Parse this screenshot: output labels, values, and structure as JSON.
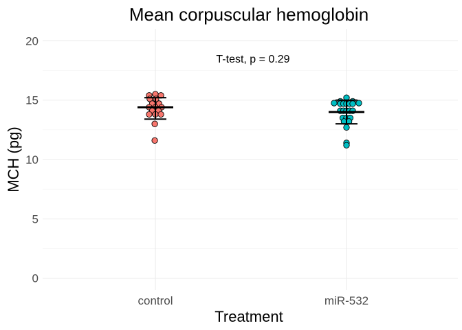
{
  "chart_data": {
    "type": "scatter",
    "title": "Mean corpuscular hemoglobin",
    "annotation": "T-test, p = 0.29",
    "xlabel": "Treatment",
    "ylabel": "MCH (pg)",
    "categories": [
      "control",
      "miR-532"
    ],
    "ylim": [
      -1,
      21
    ],
    "yticks": [
      0,
      5,
      10,
      15,
      20
    ],
    "grid": true,
    "series": [
      {
        "category": "control",
        "color": "#F8766D",
        "mean": 14.4,
        "sd_low": 13.4,
        "sd_high": 15.2,
        "points": [
          {
            "jitter": -0.5,
            "y": 15.4
          },
          {
            "jitter": 0.0,
            "y": 15.5
          },
          {
            "jitter": 0.45,
            "y": 15.4
          },
          {
            "jitter": -0.45,
            "y": 15.1
          },
          {
            "jitter": 0.05,
            "y": 15.1
          },
          {
            "jitter": -0.25,
            "y": 14.7
          },
          {
            "jitter": 0.3,
            "y": 14.7
          },
          {
            "jitter": -0.5,
            "y": 14.4
          },
          {
            "jitter": 0.0,
            "y": 14.4
          },
          {
            "jitter": 0.5,
            "y": 14.4
          },
          {
            "jitter": -0.25,
            "y": 14.1
          },
          {
            "jitter": 0.25,
            "y": 14.1
          },
          {
            "jitter": -0.5,
            "y": 13.8
          },
          {
            "jitter": 0.0,
            "y": 13.8
          },
          {
            "jitter": 0.45,
            "y": 13.8
          },
          {
            "jitter": -0.05,
            "y": 13.0
          },
          {
            "jitter": -0.05,
            "y": 11.6
          }
        ]
      },
      {
        "category": "miR-532",
        "color": "#00BFC4",
        "mean": 14.0,
        "sd_low": 13.0,
        "sd_high": 15.0,
        "points": [
          {
            "jitter": -1.0,
            "y": 14.75
          },
          {
            "jitter": 1.0,
            "y": 14.75
          },
          {
            "jitter": 0.0,
            "y": 15.2
          },
          {
            "jitter": -0.5,
            "y": 14.9
          },
          {
            "jitter": 0.5,
            "y": 14.9
          },
          {
            "jitter": -0.5,
            "y": 14.7
          },
          {
            "jitter": -0.25,
            "y": 14.7
          },
          {
            "jitter": 0.0,
            "y": 14.7
          },
          {
            "jitter": 0.25,
            "y": 14.7
          },
          {
            "jitter": 0.5,
            "y": 14.7
          },
          {
            "jitter": -0.5,
            "y": 14.1
          },
          {
            "jitter": -0.25,
            "y": 14.1
          },
          {
            "jitter": 0.0,
            "y": 14.1
          },
          {
            "jitter": 0.25,
            "y": 14.1
          },
          {
            "jitter": 0.5,
            "y": 14.1
          },
          {
            "jitter": -0.3,
            "y": 13.5
          },
          {
            "jitter": 0.0,
            "y": 13.5
          },
          {
            "jitter": 0.3,
            "y": 13.5
          },
          {
            "jitter": -0.2,
            "y": 13.2
          },
          {
            "jitter": 0.2,
            "y": 13.2
          },
          {
            "jitter": 0.0,
            "y": 12.7
          },
          {
            "jitter": 0.0,
            "y": 11.4
          },
          {
            "jitter": 0.0,
            "y": 11.2
          }
        ]
      }
    ]
  }
}
